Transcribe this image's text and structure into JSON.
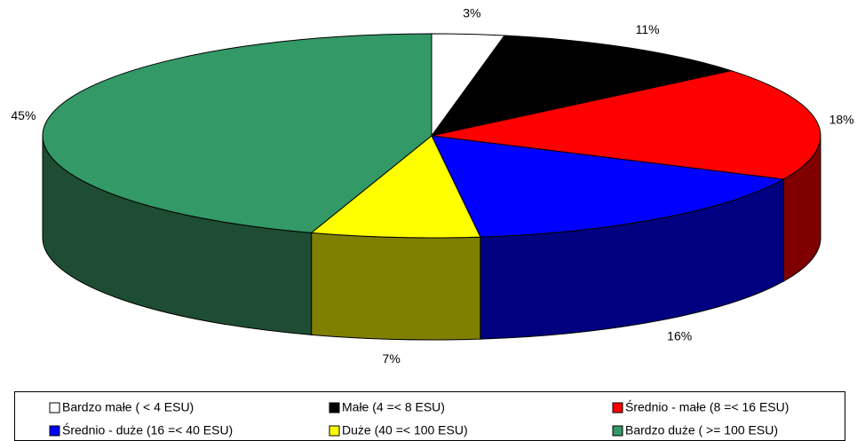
{
  "chart_data": {
    "type": "pie3d",
    "categories": [
      "Bardzo małe  ( < 4 ESU)",
      "Małe  (4 =< 8 ESU)",
      "Średnio - małe  (8 =< 16 ESU)",
      "Średnio - duże  (16 =< 40 ESU)",
      "Duże  (40 =< 100 ESU)",
      "Bardzo duże  ( >= 100 ESU)"
    ],
    "values": [
      3,
      11,
      18,
      16,
      7,
      45
    ],
    "value_labels": [
      "3%",
      "11%",
      "18%",
      "16%",
      "7%",
      "45%"
    ],
    "colors": [
      "#ffffff",
      "#000000",
      "#ff0000",
      "#0000ff",
      "#ffff00",
      "#339966"
    ],
    "side_colors": [
      "#808080",
      "#000000",
      "#800000",
      "#000080",
      "#808000",
      "#1e4d33"
    ],
    "legend": "bottom"
  }
}
